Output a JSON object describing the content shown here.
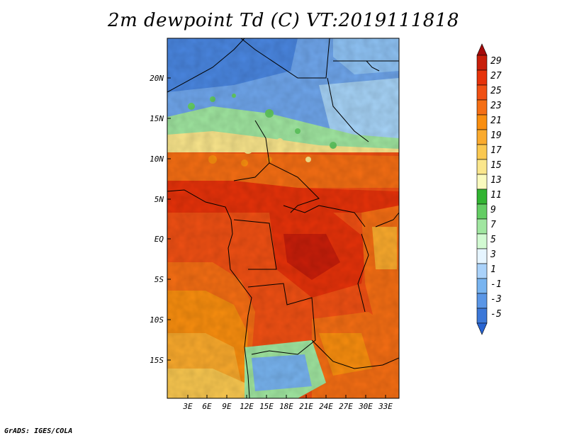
{
  "title": "2m dewpoint Td (C) VT:2019111818",
  "credit": "GrADS: IGES/COLA",
  "map": {
    "lat_labels": [
      "20N",
      "15N",
      "10N",
      "5N",
      "EQ",
      "5S",
      "10S",
      "15S"
    ],
    "lon_labels": [
      "3E",
      "6E",
      "9E",
      "12E",
      "15E",
      "18E",
      "21E",
      "24E",
      "27E",
      "30E",
      "33E"
    ]
  },
  "colorbar": {
    "labels": [
      "29",
      "27",
      "25",
      "23",
      "21",
      "19",
      "17",
      "15",
      "13",
      "11",
      "9",
      "7",
      "5",
      "3",
      "1",
      "-1",
      "-3",
      "-5"
    ],
    "colors": [
      "#a50a0a",
      "#c81e0a",
      "#e6320a",
      "#f05014",
      "#f56e14",
      "#f98e0f",
      "#faaa2d",
      "#fac850",
      "#fae68c",
      "#fafabe",
      "#32b432",
      "#64cd64",
      "#a0e6a0",
      "#d2fad2",
      "#e6f5ff",
      "#aad2fa",
      "#78b4f0",
      "#5a96e6",
      "#3c78d8",
      "#2864d2"
    ]
  }
}
